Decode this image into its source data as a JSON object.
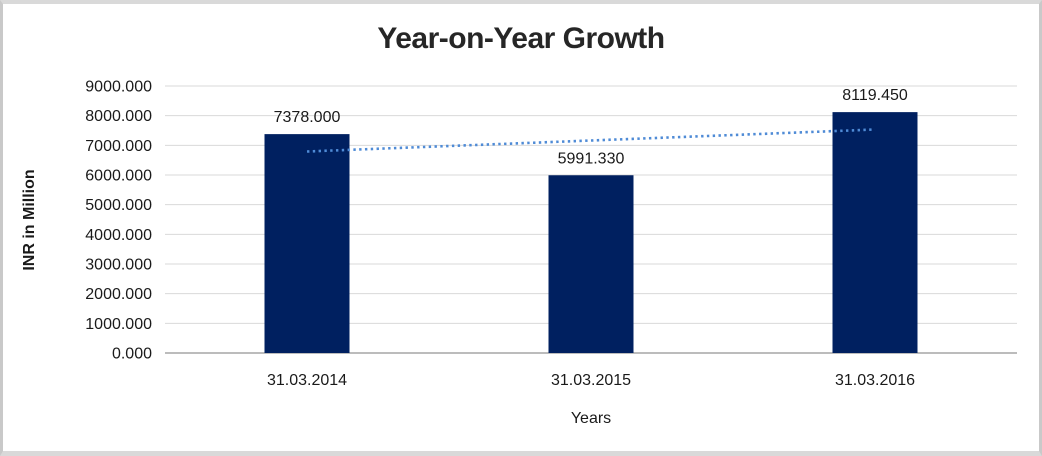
{
  "chart_data": {
    "type": "bar",
    "title": "Year-on-Year Growth",
    "xlabel": "Years",
    "ylabel": "INR in Million",
    "categories": [
      "31.03.2014",
      "31.03.2015",
      "31.03.2016"
    ],
    "values": [
      7378.0,
      5991.33,
      8119.45
    ],
    "data_labels": [
      "7378.000",
      "5991.330",
      "8119.450"
    ],
    "ylim": [
      0,
      9000
    ],
    "ytick_step": 1000,
    "ytick_labels": [
      "0.000",
      "1000.000",
      "2000.000",
      "3000.000",
      "4000.000",
      "5000.000",
      "6000.000",
      "7000.000",
      "8000.000",
      "9000.000"
    ],
    "grid": true,
    "legend": "none",
    "trendline": {
      "type": "linear",
      "style": "dotted",
      "color": "#4f8bd6"
    },
    "colors": {
      "bar": "#002060",
      "gridline": "#d9d9d9",
      "axis_line": "#a6a6a6",
      "text": "#1a1a1a",
      "title": "#262626",
      "frame_border": "#d9d9d9",
      "background": "#ffffff"
    }
  }
}
